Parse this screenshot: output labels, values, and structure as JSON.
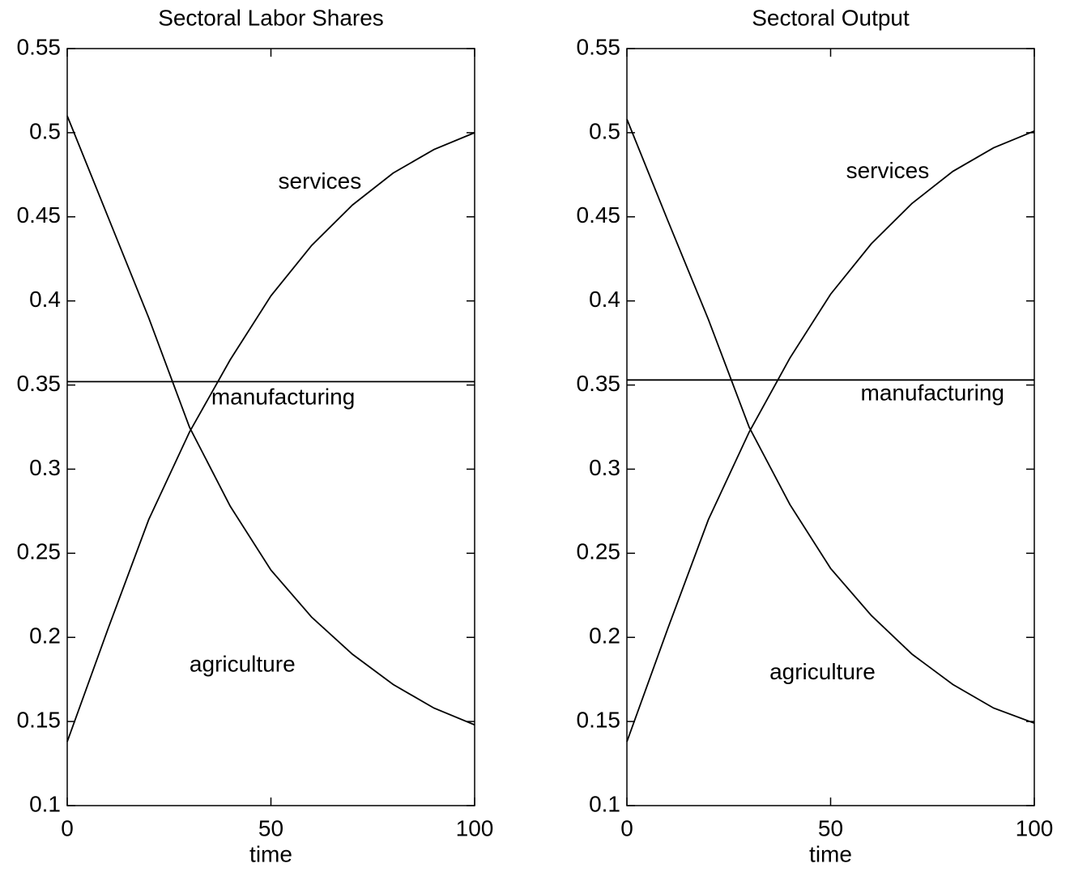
{
  "chart_data": [
    {
      "type": "line",
      "title": "Sectoral Labor Shares",
      "xlabel": "time",
      "x": [
        0,
        10,
        20,
        30,
        40,
        50,
        60,
        70,
        80,
        90,
        100
      ],
      "series": [
        {
          "name": "agriculture",
          "color": "#000000",
          "values": [
            0.51,
            0.45,
            0.39,
            0.325,
            0.278,
            0.24,
            0.212,
            0.19,
            0.172,
            0.158,
            0.148
          ]
        },
        {
          "name": "manufacturing",
          "color": "#000000",
          "values": [
            0.352,
            0.352,
            0.352,
            0.352,
            0.352,
            0.352,
            0.352,
            0.352,
            0.352,
            0.352,
            0.352
          ]
        },
        {
          "name": "services",
          "color": "#000000",
          "values": [
            0.138,
            0.205,
            0.27,
            0.322,
            0.365,
            0.403,
            0.433,
            0.457,
            0.476,
            0.49,
            0.5
          ]
        }
      ],
      "xlim": [
        0,
        100
      ],
      "xticks": [
        0,
        50,
        100
      ],
      "ylim": [
        0.1,
        0.55
      ],
      "yticks": [
        0.1,
        0.15,
        0.2,
        0.25,
        0.3,
        0.35,
        0.4,
        0.45,
        0.5,
        0.55
      ]
    },
    {
      "type": "line",
      "title": "Sectoral Output",
      "xlabel": "time",
      "x": [
        0,
        10,
        20,
        30,
        40,
        50,
        60,
        70,
        80,
        90,
        100
      ],
      "series": [
        {
          "name": "agriculture",
          "color": "#000000",
          "values": [
            0.508,
            0.448,
            0.389,
            0.325,
            0.279,
            0.241,
            0.213,
            0.19,
            0.172,
            0.158,
            0.149
          ]
        },
        {
          "name": "manufacturing",
          "color": "#000000",
          "values": [
            0.353,
            0.353,
            0.353,
            0.353,
            0.353,
            0.353,
            0.353,
            0.353,
            0.353,
            0.353,
            0.353
          ]
        },
        {
          "name": "services",
          "color": "#000000",
          "values": [
            0.138,
            0.205,
            0.27,
            0.322,
            0.366,
            0.404,
            0.434,
            0.458,
            0.477,
            0.491,
            0.501
          ]
        }
      ],
      "xlim": [
        0,
        100
      ],
      "xticks": [
        0,
        50,
        100
      ],
      "ylim": [
        0.1,
        0.55
      ],
      "yticks": [
        0.1,
        0.15,
        0.2,
        0.25,
        0.3,
        0.35,
        0.4,
        0.45,
        0.5,
        0.55
      ]
    }
  ]
}
